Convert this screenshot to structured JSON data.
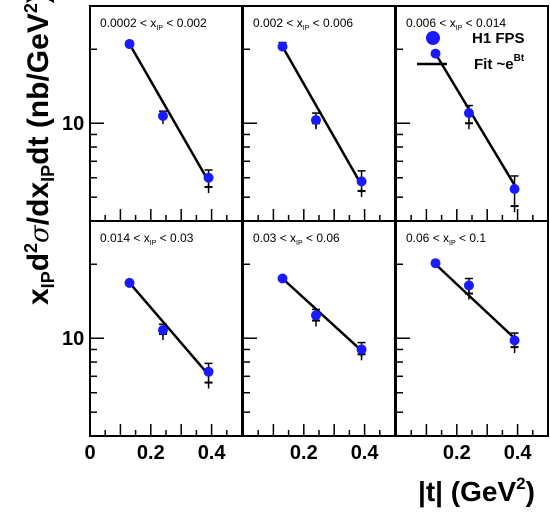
{
  "chart_data": {
    "type": "scatter",
    "xlabel": "|t| (GeV²)",
    "ylabel": "xIPd²σ/dxIPdt (nb/GeV²)",
    "x_ticks": [
      "0",
      "0.2",
      "0.4"
    ],
    "y_tick": "10",
    "xlim": [
      0,
      0.5
    ],
    "ylim": [
      4,
      30
    ],
    "y_scale": "log",
    "marker_color": "#1a1aff",
    "legend": [
      {
        "label": "H1 FPS",
        "kind": "marker"
      },
      {
        "label": "Fit ~e",
        "superscript": "Bt",
        "kind": "line"
      }
    ],
    "panels": [
      {
        "title": "0.0002 < x",
        "sub": "IP",
        "title_end": " < 0.002",
        "points": [
          {
            "x": 0.13,
            "y": 21.0,
            "err": 0.6,
            "alt": 21.0
          },
          {
            "x": 0.24,
            "y": 10.7,
            "err": 0.5,
            "alt": 10.5
          },
          {
            "x": 0.39,
            "y": 6.0,
            "err": 0.45,
            "alt": 5.5
          }
        ],
        "fit": [
          [
            0.13,
            21.0
          ],
          [
            0.39,
            5.8
          ]
        ]
      },
      {
        "title": "0.002 < x",
        "sub": "IP",
        "title_end": " < 0.006",
        "points": [
          {
            "x": 0.13,
            "y": 20.5,
            "err": 0.8,
            "alt": 20.5
          },
          {
            "x": 0.24,
            "y": 10.3,
            "err": 0.7,
            "alt": 10.0
          },
          {
            "x": 0.39,
            "y": 5.8,
            "err": 0.6,
            "alt": 5.3
          }
        ],
        "fit": [
          [
            0.13,
            20.5
          ],
          [
            0.39,
            5.6
          ]
        ]
      },
      {
        "title": "0.006 < x",
        "sub": "IP",
        "title_end": " < 0.014",
        "points": [
          {
            "x": 0.13,
            "y": 19.2,
            "err": 0.5,
            "alt": 19.2
          },
          {
            "x": 0.24,
            "y": 11.0,
            "err": 0.8,
            "alt": 10.0
          },
          {
            "x": 0.39,
            "y": 5.4,
            "err": 0.7,
            "alt": 4.6
          }
        ],
        "fit": [
          [
            0.13,
            19.2
          ],
          [
            0.39,
            5.6
          ]
        ]
      },
      {
        "title": "0.014 < x",
        "sub": "IP",
        "title_end": " < 0.03",
        "points": [
          {
            "x": 0.13,
            "y": 16.8,
            "err": 0.4,
            "alt": 16.8
          },
          {
            "x": 0.24,
            "y": 10.8,
            "err": 0.6,
            "alt": 10.4
          },
          {
            "x": 0.39,
            "y": 7.3,
            "err": 0.6,
            "alt": 6.6
          }
        ],
        "fit": [
          [
            0.13,
            16.8
          ],
          [
            0.39,
            7.1
          ]
        ]
      },
      {
        "title": "0.03 < x",
        "sub": "IP",
        "title_end": " < 0.06",
        "points": [
          {
            "x": 0.13,
            "y": 17.5,
            "err": 0.4,
            "alt": 17.5
          },
          {
            "x": 0.24,
            "y": 12.4,
            "err": 0.7,
            "alt": 11.8
          },
          {
            "x": 0.39,
            "y": 9.0,
            "err": 0.6,
            "alt": 8.6
          }
        ],
        "fit": [
          [
            0.13,
            17.5
          ],
          [
            0.39,
            8.9
          ]
        ]
      },
      {
        "title": "0.06 < x",
        "sub": "IP",
        "title_end": " < 0.1",
        "points": [
          {
            "x": 0.13,
            "y": 20.2,
            "err": 0.5,
            "alt": 20.2
          },
          {
            "x": 0.24,
            "y": 16.4,
            "err": 1.1,
            "alt": 15.2
          },
          {
            "x": 0.39,
            "y": 9.8,
            "err": 0.7,
            "alt": 9.2
          }
        ],
        "fit": [
          [
            0.13,
            20.0
          ],
          [
            0.39,
            10.0
          ]
        ]
      }
    ]
  }
}
